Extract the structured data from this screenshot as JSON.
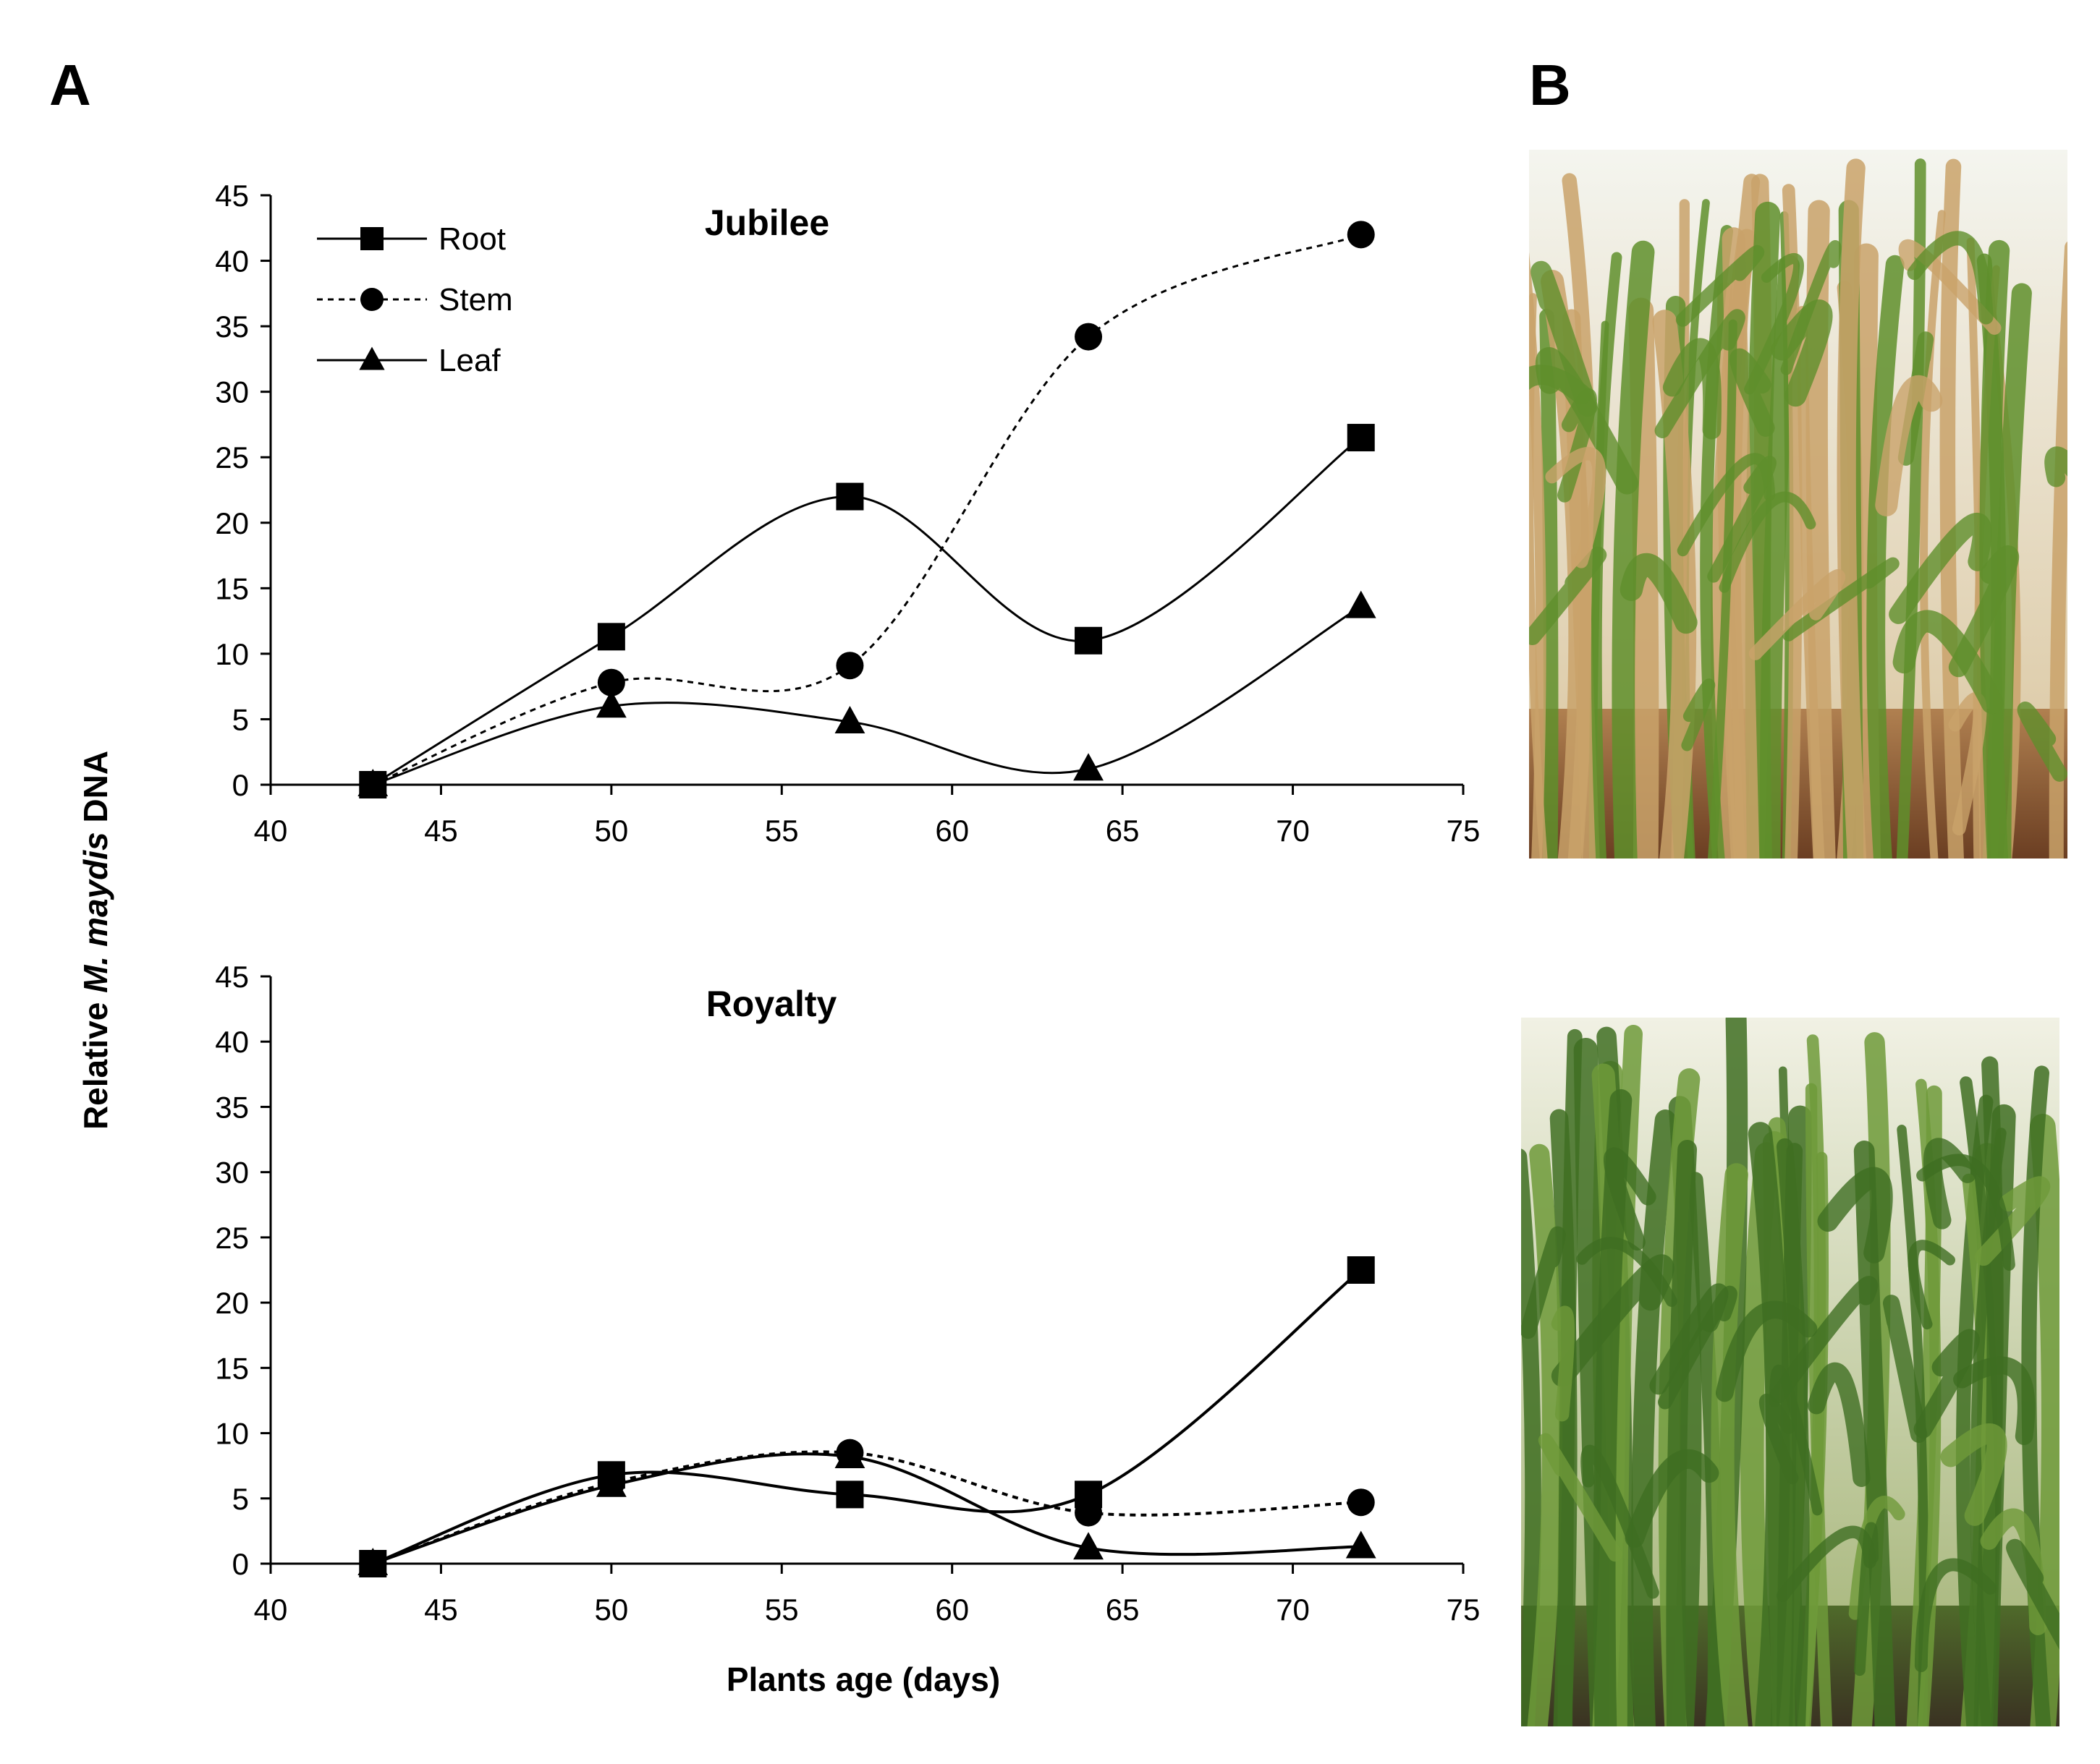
{
  "panels": {
    "a_letter": "A",
    "b_letter": "B"
  },
  "ylabel": {
    "prefix": "Relative ",
    "italic": "M. maydis",
    "suffix": " DNA"
  },
  "xlabel": "Plants age (days)",
  "legend": [
    {
      "name": "Root",
      "marker": "square",
      "dash": "solid"
    },
    {
      "name": "Stem",
      "marker": "circle",
      "dash": "dotted"
    },
    {
      "name": "Leaf",
      "marker": "triangle",
      "dash": "solid"
    }
  ],
  "chart_data": [
    {
      "type": "line",
      "title": "Jubilee",
      "xlim": [
        40,
        75
      ],
      "ylim": [
        0,
        45
      ],
      "xticks": [
        40,
        45,
        50,
        55,
        60,
        65,
        70,
        75
      ],
      "yticks": [
        0,
        5,
        10,
        15,
        20,
        25,
        30,
        35,
        40,
        45
      ],
      "x": [
        43,
        50,
        57,
        64,
        72
      ],
      "series": [
        {
          "name": "Root",
          "marker": "square",
          "dash": "solid",
          "values": [
            0,
            11.3,
            22,
            11,
            26.5
          ]
        },
        {
          "name": "Stem",
          "marker": "circle",
          "dash": "dotted",
          "values": [
            0,
            7.8,
            9.1,
            34.2,
            42
          ]
        },
        {
          "name": "Leaf",
          "marker": "triangle",
          "dash": "solid",
          "values": [
            0,
            6,
            4.8,
            1.2,
            13.6
          ]
        }
      ]
    },
    {
      "type": "line",
      "title": "Royalty",
      "xlim": [
        40,
        75
      ],
      "ylim": [
        0,
        45
      ],
      "xticks": [
        40,
        45,
        50,
        55,
        60,
        65,
        70,
        75
      ],
      "yticks": [
        0,
        5,
        10,
        15,
        20,
        25,
        30,
        35,
        40,
        45
      ],
      "x": [
        43,
        50,
        57,
        64,
        72
      ],
      "series": [
        {
          "name": "Root",
          "marker": "square",
          "dash": "solid",
          "values": [
            0,
            6.8,
            5.3,
            5.3,
            22.5
          ]
        },
        {
          "name": "Stem",
          "marker": "circle",
          "dash": "dotted",
          "values": [
            0,
            6.2,
            8.5,
            3.9,
            4.7
          ]
        },
        {
          "name": "Leaf",
          "marker": "triangle",
          "dash": "solid",
          "values": [
            0,
            6,
            8.2,
            1.2,
            1.3
          ]
        }
      ]
    }
  ],
  "photos": [
    {
      "icon": "senesced-maize-field-photo",
      "colors": {
        "sky": "#e9eee6",
        "stalk": "#c9a26a",
        "leaf": "#5f8f2c",
        "soil": "#7a4a2a"
      }
    },
    {
      "icon": "green-maize-field-photo",
      "colors": {
        "sky": "#eef0e2",
        "stalk": "#6f9a3a",
        "leaf": "#3f6e22",
        "soil": "#5a4a32"
      }
    }
  ]
}
